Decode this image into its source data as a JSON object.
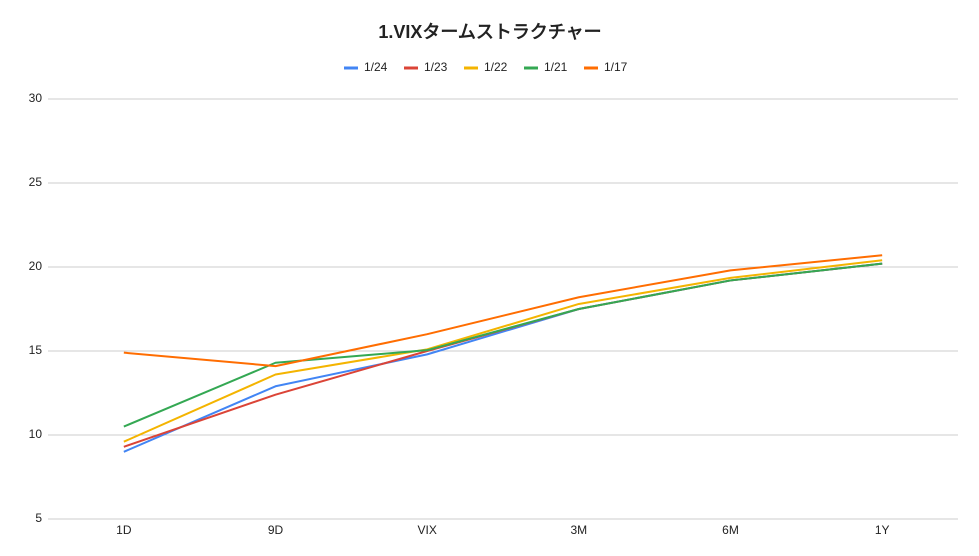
{
  "chart_data": {
    "type": "line",
    "title": "1.VIXタームストラクチャー",
    "categories": [
      "1D",
      "9D",
      "VIX",
      "3M",
      "6M",
      "1Y"
    ],
    "series": [
      {
        "name": "1/24",
        "color": "#4285f4",
        "values": [
          9.0,
          12.9,
          14.8,
          17.5,
          19.2,
          20.2
        ]
      },
      {
        "name": "1/23",
        "color": "#db4437",
        "values": [
          9.3,
          12.4,
          15.0,
          17.5,
          19.2,
          20.2
        ]
      },
      {
        "name": "1/22",
        "color": "#f4b400",
        "values": [
          9.6,
          13.6,
          15.1,
          17.8,
          19.35,
          20.4
        ]
      },
      {
        "name": "1/21",
        "color": "#34a853",
        "values": [
          10.5,
          14.3,
          15.05,
          17.5,
          19.2,
          20.2
        ]
      },
      {
        "name": "1/17",
        "color": "#ff6d01",
        "values": [
          14.9,
          14.1,
          16.0,
          18.2,
          19.8,
          20.7
        ]
      }
    ],
    "ylim": [
      5,
      30
    ],
    "yticks": [
      5,
      10,
      15,
      20,
      25,
      30
    ],
    "grid": true,
    "legend": "top"
  }
}
